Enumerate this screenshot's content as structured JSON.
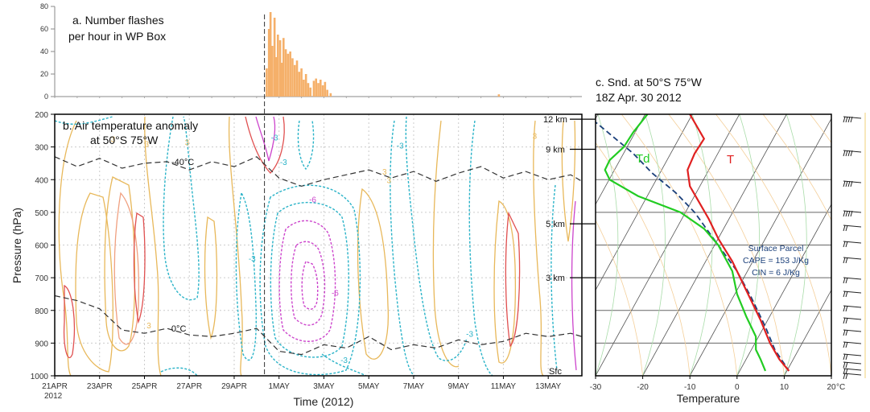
{
  "chart_data": [
    {
      "id": "a",
      "type": "bar",
      "title_line1": "a. Number flashes",
      "title_line2": "per hour in WP Box",
      "yticks": [
        0,
        20,
        40,
        60,
        80
      ],
      "ylim": [
        0,
        80
      ],
      "x_range": [
        "21APR",
        "14MAY"
      ],
      "x_start_day": 0,
      "x_end_day": 23.5,
      "bar_color": "#f5b06a",
      "marker_day": 9.35,
      "burst": [
        {
          "day": 9.45,
          "value": 25
        },
        {
          "day": 9.55,
          "value": 60
        },
        {
          "day": 9.62,
          "value": 75
        },
        {
          "day": 9.7,
          "value": 45
        },
        {
          "day": 9.8,
          "value": 70
        },
        {
          "day": 9.88,
          "value": 35
        },
        {
          "day": 9.95,
          "value": 55
        },
        {
          "day": 10.05,
          "value": 50
        },
        {
          "day": 10.12,
          "value": 30
        },
        {
          "day": 10.2,
          "value": 52
        },
        {
          "day": 10.3,
          "value": 42
        },
        {
          "day": 10.4,
          "value": 38
        },
        {
          "day": 10.5,
          "value": 40
        },
        {
          "day": 10.6,
          "value": 34
        },
        {
          "day": 10.7,
          "value": 28
        },
        {
          "day": 10.8,
          "value": 32
        },
        {
          "day": 10.9,
          "value": 22
        },
        {
          "day": 11.0,
          "value": 25
        },
        {
          "day": 11.1,
          "value": 15
        },
        {
          "day": 11.2,
          "value": 20
        },
        {
          "day": 11.3,
          "value": 12
        },
        {
          "day": 11.4,
          "value": 8
        },
        {
          "day": 11.55,
          "value": 14
        },
        {
          "day": 11.65,
          "value": 16
        },
        {
          "day": 11.75,
          "value": 12
        },
        {
          "day": 11.85,
          "value": 15
        },
        {
          "day": 11.95,
          "value": 10
        },
        {
          "day": 12.05,
          "value": 13
        },
        {
          "day": 12.15,
          "value": 6
        },
        {
          "day": 12.3,
          "value": 3
        },
        {
          "day": 19.8,
          "value": 2
        }
      ]
    },
    {
      "id": "b",
      "type": "heatmap",
      "title_line1": "b. Air temperature anomaly",
      "title_line2": "at 50°S 75°W",
      "xlabel": "Time (2012)",
      "ylabel": "Pressure (hPa)",
      "ylim": [
        1000,
        200
      ],
      "yticks": [
        200,
        300,
        400,
        500,
        600,
        700,
        800,
        900,
        1000
      ],
      "x_tick_labels": [
        "21APR",
        "23APR",
        "25APR",
        "27APR",
        "29APR",
        "1MAY",
        "3MAY",
        "5MAY",
        "7MAY",
        "9MAY",
        "11MAY",
        "13MAY"
      ],
      "x_tick_days": [
        0,
        2,
        4,
        6,
        8,
        10,
        12,
        14,
        16,
        18,
        20,
        22
      ],
      "x_year_label": "2012",
      "height_labels": [
        {
          "text": "12 km",
          "pressure": 215
        },
        {
          "text": "9 km",
          "pressure": 307
        },
        {
          "text": "5 km",
          "pressure": 535
        },
        {
          "text": "3 km",
          "pressure": 700
        },
        {
          "text": "Sfc",
          "pressure": 985
        }
      ],
      "isotherms": [
        {
          "label": "-40°C",
          "label_day": 5.2,
          "points": [
            [
              0,
              330
            ],
            [
              1,
              360
            ],
            [
              2,
              335
            ],
            [
              3,
              365
            ],
            [
              4,
              350
            ],
            [
              5,
              345
            ],
            [
              6,
              370
            ],
            [
              7,
              345
            ],
            [
              8,
              360
            ],
            [
              9,
              330
            ],
            [
              10,
              395
            ],
            [
              11,
              420
            ],
            [
              12,
              400
            ],
            [
              13,
              385
            ],
            [
              14,
              370
            ],
            [
              15,
              395
            ],
            [
              16,
              375
            ],
            [
              17,
              405
            ],
            [
              18,
              380
            ],
            [
              19,
              360
            ],
            [
              20,
              395
            ],
            [
              21,
              375
            ],
            [
              22,
              400
            ],
            [
              23,
              385
            ],
            [
              23.5,
              405
            ]
          ]
        },
        {
          "label": "0°C",
          "label_day": 5.2,
          "points": [
            [
              0,
              755
            ],
            [
              1,
              770
            ],
            [
              2,
              795
            ],
            [
              3,
              860
            ],
            [
              4,
              870
            ],
            [
              5,
              855
            ],
            [
              6,
              875
            ],
            [
              7,
              880
            ],
            [
              8,
              870
            ],
            [
              9,
              855
            ],
            [
              10,
              925
            ],
            [
              11,
              935
            ],
            [
              12,
              905
            ],
            [
              13,
              915
            ],
            [
              14,
              880
            ],
            [
              15,
              920
            ],
            [
              16,
              905
            ],
            [
              17,
              915
            ],
            [
              18,
              890
            ],
            [
              19,
              905
            ],
            [
              20,
              895
            ],
            [
              21,
              870
            ],
            [
              22,
              880
            ],
            [
              23,
              870
            ],
            [
              23.5,
              880
            ]
          ]
        }
      ],
      "contour_labels": [
        {
          "text": "3",
          "day": 2.6,
          "pressure": 285,
          "color": "#e8b85a"
        },
        {
          "text": "3",
          "day": 4.1,
          "pressure": 300,
          "color": "#e8b85a"
        },
        {
          "text": "3",
          "day": 5.9,
          "pressure": 295,
          "color": "#e8b85a"
        },
        {
          "text": "3",
          "day": 4.2,
          "pressure": 855,
          "color": "#e8b85a"
        },
        {
          "text": "-3",
          "day": 9.8,
          "pressure": 280,
          "color": "#2ab3c8"
        },
        {
          "text": "-3",
          "day": 10.2,
          "pressure": 355,
          "color": "#2ab3c8"
        },
        {
          "text": "-3",
          "day": 15.4,
          "pressure": 305,
          "color": "#2ab3c8"
        },
        {
          "text": "-3",
          "day": 8.8,
          "pressure": 650,
          "color": "#2ab3c8"
        },
        {
          "text": "-3",
          "day": 18.5,
          "pressure": 880,
          "color": "#2ab3c8"
        },
        {
          "text": "-3",
          "day": 12.9,
          "pressure": 960,
          "color": "#2ab3c8"
        },
        {
          "text": "-6",
          "day": 11.5,
          "pressure": 470,
          "color": "#cc44cc"
        },
        {
          "text": "-6",
          "day": 12.5,
          "pressure": 755,
          "color": "#cc44cc"
        },
        {
          "text": "3",
          "day": 14.7,
          "pressure": 385,
          "color": "#e8b85a"
        },
        {
          "text": "3",
          "day": 14.9,
          "pressure": 410,
          "color": "#e8b85a"
        },
        {
          "text": "3",
          "day": 21.4,
          "pressure": 275,
          "color": "#e8b85a"
        }
      ]
    },
    {
      "id": "c",
      "type": "line",
      "title_line1": "c. Snd. at 50°S 75°W",
      "title_line2": "18Z  Apr. 30 2012",
      "xlabel": "Temperature",
      "xlim": [
        -30,
        20
      ],
      "xticks": [
        -30,
        -20,
        -10,
        0,
        10,
        20
      ],
      "xunit": "°C",
      "ylim": [
        1000,
        200
      ],
      "series": [
        {
          "name": "T",
          "color": "#e02020",
          "points": [
            [
              -10,
              200
            ],
            [
              -7,
              275
            ],
            [
              -9,
              320
            ],
            [
              -10.5,
              370
            ],
            [
              -10,
              420
            ],
            [
              -8,
              470
            ],
            [
              -6,
              520
            ],
            [
              -4,
              580
            ],
            [
              -1,
              650
            ],
            [
              2,
              740
            ],
            [
              5,
              830
            ],
            [
              7,
              900
            ],
            [
              9,
              950
            ],
            [
              11,
              985
            ]
          ]
        },
        {
          "name": "Td",
          "color": "#22cc22",
          "points": [
            [
              -19,
              200
            ],
            [
              -22,
              255
            ],
            [
              -24,
              300
            ],
            [
              -27,
              340
            ],
            [
              -28,
              370
            ],
            [
              -27,
              400
            ],
            [
              -21,
              450
            ],
            [
              -12,
              500
            ],
            [
              -7,
              550
            ],
            [
              -4,
              600
            ],
            [
              -1,
              680
            ],
            [
              0,
              750
            ],
            [
              2,
              820
            ],
            [
              4,
              880
            ],
            [
              4,
              920
            ],
            [
              5,
              950
            ],
            [
              6,
              985
            ]
          ]
        }
      ],
      "parcel": {
        "color": "#1a3f7a",
        "points": [
          [
            -32,
            200
          ],
          [
            -27,
            260
          ],
          [
            -22,
            320
          ],
          [
            -18,
            380
          ],
          [
            -13,
            440
          ],
          [
            -9,
            500
          ],
          [
            -6,
            560
          ],
          [
            -3,
            620
          ],
          [
            0,
            680
          ],
          [
            3,
            760
          ],
          [
            6,
            850
          ],
          [
            8,
            920
          ],
          [
            11,
            985
          ]
        ]
      },
      "annotation": [
        "Surface Parcel",
        "CAPE = 153 J/Kg",
        "CIN = 6 J/Kg"
      ],
      "annotation_color": "#1a3f7a"
    }
  ]
}
